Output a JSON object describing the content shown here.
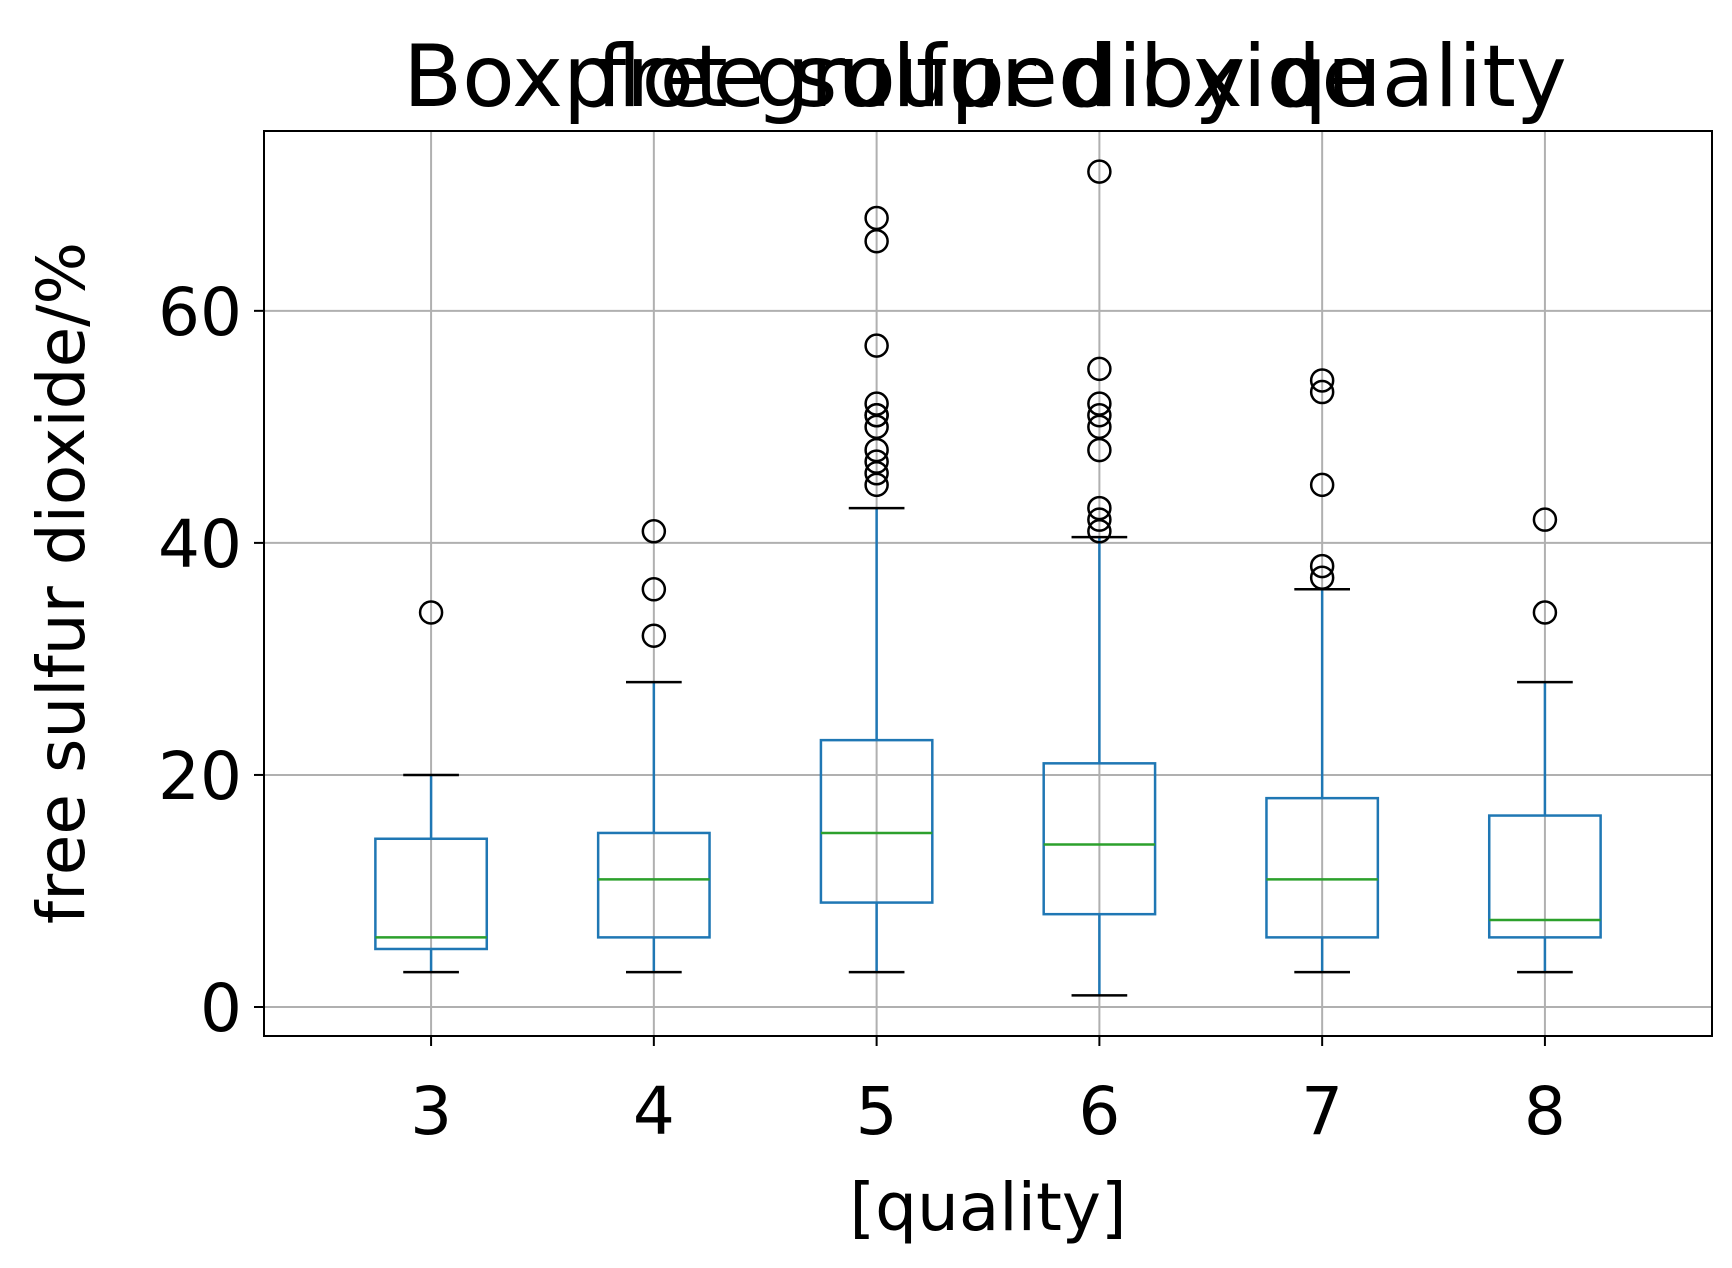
{
  "chart_data": {
    "type": "box",
    "suptitle": "Boxplot grouped by quality",
    "title": "free sulfur dioxide",
    "xlabel": "[quality]",
    "ylabel": "free sulfur dioxide/%",
    "categories": [
      "3",
      "4",
      "5",
      "6",
      "7",
      "8"
    ],
    "yticks": [
      0,
      20,
      40,
      60
    ],
    "ytick_labels": [
      "0",
      "20",
      "40",
      "60"
    ],
    "ylim": [
      -2.5,
      75.5
    ],
    "grid": true,
    "box_color": "#1f77b4",
    "median_color": "#2ca02c",
    "boxes": [
      {
        "category": "3",
        "whislo": 3,
        "q1": 5,
        "med": 6,
        "q3": 14.5,
        "whishi": 20,
        "fliers": [
          34
        ]
      },
      {
        "category": "4",
        "whislo": 3,
        "q1": 6,
        "med": 11,
        "q3": 15,
        "whishi": 28,
        "fliers": [
          32,
          36,
          41
        ]
      },
      {
        "category": "5",
        "whislo": 3,
        "q1": 9,
        "med": 15,
        "q3": 23,
        "whishi": 43,
        "fliers": [
          45,
          46,
          47,
          48,
          50,
          51,
          51,
          52,
          57,
          66,
          68
        ]
      },
      {
        "category": "6",
        "whislo": 1,
        "q1": 8,
        "med": 14,
        "q3": 21,
        "whishi": 40.5,
        "fliers": [
          41,
          42,
          43,
          48,
          50,
          51,
          52,
          55,
          72
        ]
      },
      {
        "category": "7",
        "whislo": 3,
        "q1": 6,
        "med": 11,
        "q3": 18,
        "whishi": 36,
        "fliers": [
          37,
          38,
          45,
          53,
          54
        ]
      },
      {
        "category": "8",
        "whislo": 3,
        "q1": 6,
        "med": 7.5,
        "q3": 16.5,
        "whishi": 28,
        "fliers": [
          34,
          42
        ]
      }
    ]
  }
}
